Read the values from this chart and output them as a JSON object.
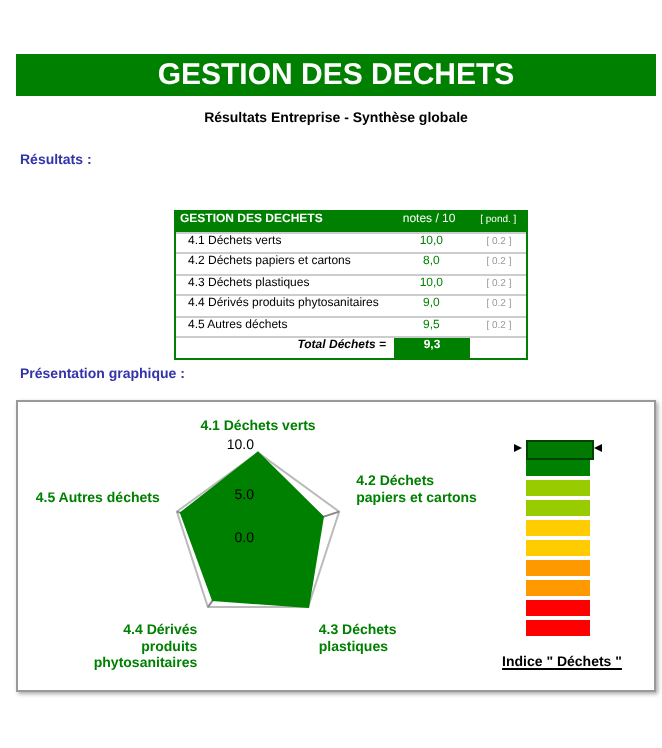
{
  "chart_data": [
    {
      "type": "other",
      "title": "GESTION DES DECHETS",
      "subtitle": "Résultats Entreprise - Synthèse globale",
      "annotations": [
        "Résultats :",
        "GESTION DES DECHETS",
        "notes / 10",
        "[ pond. ]",
        "4.1 Déchets verts",
        "10,0",
        "[ 0.2 ]",
        "4.2 Déchets papiers et cartons",
        "8,0",
        "[ 0.2 ]",
        "4.3 Déchets plastiques",
        "10,0",
        "[ 0.2 ]",
        "4.4 Dérivés produits phytosanitaires",
        "9,0",
        "[ 0.2 ]",
        "4.5 Autres déchets",
        "9,5",
        "[ 0.2 ]",
        "Total Déchets =",
        "9,3",
        "Présentation graphique :"
      ]
    },
    {
      "type": "radar",
      "categories": [
        "4.1 Déchets verts",
        "4.2 Déchets papiers et cartons",
        "4.3 Déchets plastiques",
        "4.4 Dérivés produits phytosanitaires",
        "4.5 Autres déchets"
      ],
      "values": [
        10,
        8,
        10,
        9,
        9.5
      ],
      "color": "#008000",
      "ylim": [
        0,
        10
      ],
      "yticks": [
        {
          "value": 0,
          "label": "0.0"
        },
        {
          "value": 5,
          "label": "5.0"
        },
        {
          "value": 10,
          "label": "10.0"
        }
      ],
      "grid": true,
      "marker": "none",
      "annotations": [
        "Indice \" Déchets \""
      ]
    }
  ]
}
